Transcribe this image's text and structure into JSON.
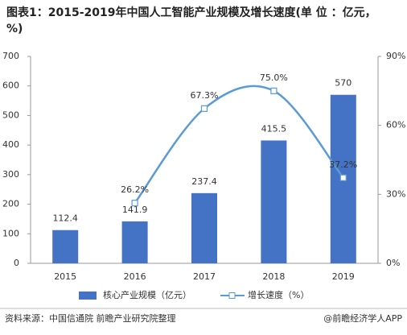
{
  "chart_data": {
    "type": "bar",
    "title": "图表1：2015-2019年中国人工智能产业规模及增长速度(单 位 ：亿元，%)",
    "categories": [
      "2015",
      "2016",
      "2017",
      "2018",
      "2019"
    ],
    "series": [
      {
        "name": "核心产业规模（亿元）",
        "type": "bar",
        "color": "#4472c4",
        "values": [
          112.4,
          141.9,
          237.4,
          415.5,
          570
        ]
      },
      {
        "name": "增长速度（%）",
        "type": "line",
        "axis": "y2",
        "color": "#5b9bd5",
        "values": [
          null,
          26.2,
          67.3,
          75.0,
          37.2
        ],
        "value_labels": [
          null,
          "26.2%",
          "67.3%",
          "75.0%",
          "37.2%"
        ]
      }
    ],
    "ylim": [
      0,
      700
    ],
    "yticks": [
      0,
      100,
      200,
      300,
      400,
      500,
      600,
      700
    ],
    "y2lim": [
      0,
      90
    ],
    "y2ticks": [
      {
        "value": 0,
        "label": "0%"
      },
      {
        "value": 30,
        "label": "30%"
      },
      {
        "value": 60,
        "label": "60%"
      },
      {
        "value": 90,
        "label": "90%"
      }
    ],
    "source": "资料来源：中国信通院 前瞻产业研究院整理",
    "brand": "@前瞻经济学人APP"
  }
}
